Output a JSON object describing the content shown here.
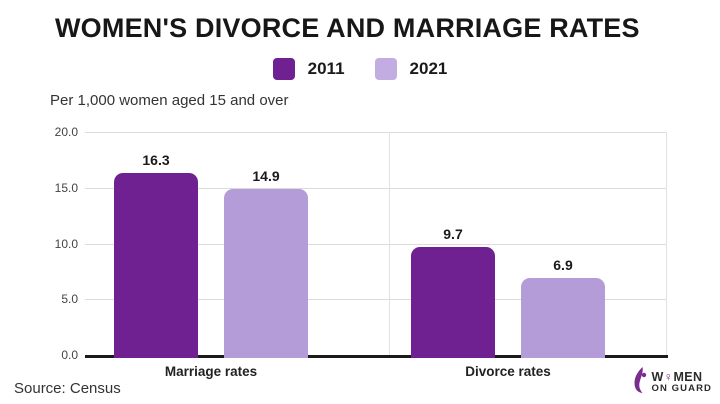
{
  "title": "WOMEN'S DIVORCE AND MARRIAGE RATES",
  "subtitle": "Per 1,000 women aged 15 and over",
  "source": "Source: Census",
  "legend": [
    {
      "label": "2011",
      "color": "#6F2191"
    },
    {
      "label": "2021",
      "color": "#C3ACE2"
    }
  ],
  "chart_data": {
    "type": "bar",
    "categories": [
      "Marriage rates",
      "Divorce rates"
    ],
    "series": [
      {
        "name": "2011",
        "color": "#6F2191",
        "values": [
          16.3,
          9.7
        ]
      },
      {
        "name": "2021",
        "color": "#B49CD8",
        "values": [
          14.9,
          6.9
        ]
      }
    ],
    "title": "WOMEN'S DIVORCE AND MARRIAGE RATES",
    "subtitle": "Per 1,000 women aged 15 and over",
    "xlabel": "",
    "ylabel": "Per 1,000 women aged 15 and over",
    "ylim": [
      0,
      20
    ],
    "yticks": [
      20.0,
      15.0,
      10.0,
      5.0,
      0.0
    ],
    "grid": "horizontal",
    "legend_position": "top-center",
    "value_labels": true
  },
  "colors": {
    "background": "#FFFFFF",
    "title_text": "#171717",
    "axis_baseline": "#1A1A1A",
    "gridline": "#DCDCDC",
    "logo_purple": "#7B2D8E"
  },
  "logo": {
    "icon": "woman-silhouette-icon",
    "line1_pre": "W",
    "o_symbol": "♀",
    "line1_post": "MEN",
    "line2": "ON GUARD"
  }
}
